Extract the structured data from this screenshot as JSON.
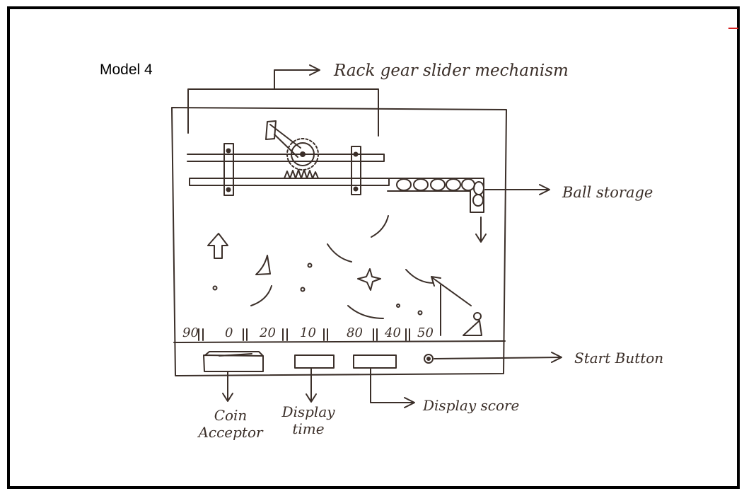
{
  "title": "Model 4",
  "labels": {
    "rack_gear": "Rack gear slider mechanism",
    "ball_storage": "Ball storage",
    "start_button": "Start Button",
    "coin_acceptor_1": "Coin",
    "coin_acceptor_2": "Acceptor",
    "display_time_1": "Display",
    "display_time_2": "time",
    "display_score": "Display score"
  },
  "slots": [
    "90",
    "0",
    "20",
    "10",
    "80",
    "40",
    "50"
  ],
  "colors": {
    "ink": "#3b2f29",
    "border": "#000000",
    "paper": "#ffffff"
  }
}
